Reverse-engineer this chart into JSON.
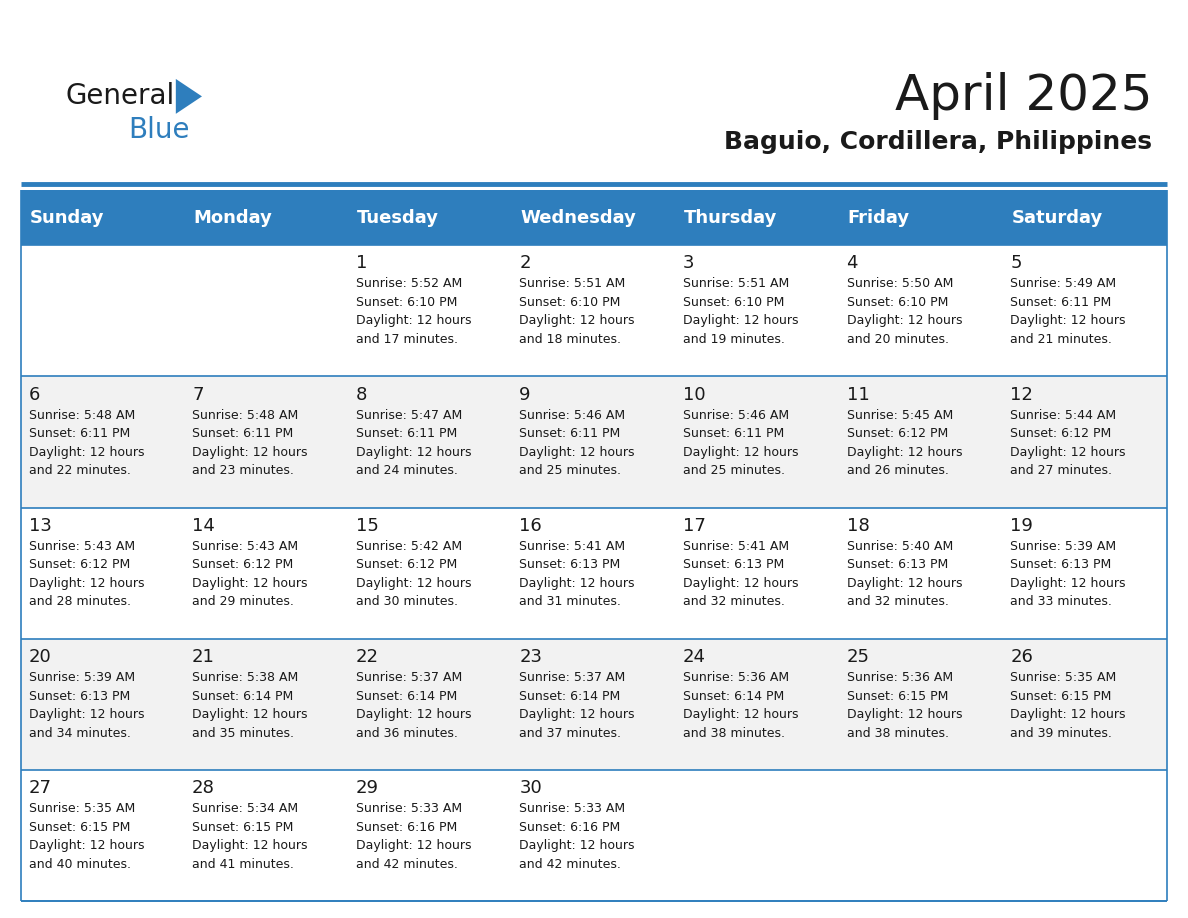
{
  "title": "April 2025",
  "subtitle": "Baguio, Cordillera, Philippines",
  "header_bg": "#2E7EBD",
  "header_text_color": "#FFFFFF",
  "row_bg_odd": "#FFFFFF",
  "row_bg_even": "#F2F2F2",
  "border_color": "#2E7EBD",
  "cell_border_color": "#2E7EBD",
  "days_of_week": [
    "Sunday",
    "Monday",
    "Tuesday",
    "Wednesday",
    "Thursday",
    "Friday",
    "Saturday"
  ],
  "weeks": [
    [
      {
        "day": "",
        "info": ""
      },
      {
        "day": "",
        "info": ""
      },
      {
        "day": "1",
        "info": "Sunrise: 5:52 AM\nSunset: 6:10 PM\nDaylight: 12 hours\nand 17 minutes."
      },
      {
        "day": "2",
        "info": "Sunrise: 5:51 AM\nSunset: 6:10 PM\nDaylight: 12 hours\nand 18 minutes."
      },
      {
        "day": "3",
        "info": "Sunrise: 5:51 AM\nSunset: 6:10 PM\nDaylight: 12 hours\nand 19 minutes."
      },
      {
        "day": "4",
        "info": "Sunrise: 5:50 AM\nSunset: 6:10 PM\nDaylight: 12 hours\nand 20 minutes."
      },
      {
        "day": "5",
        "info": "Sunrise: 5:49 AM\nSunset: 6:11 PM\nDaylight: 12 hours\nand 21 minutes."
      }
    ],
    [
      {
        "day": "6",
        "info": "Sunrise: 5:48 AM\nSunset: 6:11 PM\nDaylight: 12 hours\nand 22 minutes."
      },
      {
        "day": "7",
        "info": "Sunrise: 5:48 AM\nSunset: 6:11 PM\nDaylight: 12 hours\nand 23 minutes."
      },
      {
        "day": "8",
        "info": "Sunrise: 5:47 AM\nSunset: 6:11 PM\nDaylight: 12 hours\nand 24 minutes."
      },
      {
        "day": "9",
        "info": "Sunrise: 5:46 AM\nSunset: 6:11 PM\nDaylight: 12 hours\nand 25 minutes."
      },
      {
        "day": "10",
        "info": "Sunrise: 5:46 AM\nSunset: 6:11 PM\nDaylight: 12 hours\nand 25 minutes."
      },
      {
        "day": "11",
        "info": "Sunrise: 5:45 AM\nSunset: 6:12 PM\nDaylight: 12 hours\nand 26 minutes."
      },
      {
        "day": "12",
        "info": "Sunrise: 5:44 AM\nSunset: 6:12 PM\nDaylight: 12 hours\nand 27 minutes."
      }
    ],
    [
      {
        "day": "13",
        "info": "Sunrise: 5:43 AM\nSunset: 6:12 PM\nDaylight: 12 hours\nand 28 minutes."
      },
      {
        "day": "14",
        "info": "Sunrise: 5:43 AM\nSunset: 6:12 PM\nDaylight: 12 hours\nand 29 minutes."
      },
      {
        "day": "15",
        "info": "Sunrise: 5:42 AM\nSunset: 6:12 PM\nDaylight: 12 hours\nand 30 minutes."
      },
      {
        "day": "16",
        "info": "Sunrise: 5:41 AM\nSunset: 6:13 PM\nDaylight: 12 hours\nand 31 minutes."
      },
      {
        "day": "17",
        "info": "Sunrise: 5:41 AM\nSunset: 6:13 PM\nDaylight: 12 hours\nand 32 minutes."
      },
      {
        "day": "18",
        "info": "Sunrise: 5:40 AM\nSunset: 6:13 PM\nDaylight: 12 hours\nand 32 minutes."
      },
      {
        "day": "19",
        "info": "Sunrise: 5:39 AM\nSunset: 6:13 PM\nDaylight: 12 hours\nand 33 minutes."
      }
    ],
    [
      {
        "day": "20",
        "info": "Sunrise: 5:39 AM\nSunset: 6:13 PM\nDaylight: 12 hours\nand 34 minutes."
      },
      {
        "day": "21",
        "info": "Sunrise: 5:38 AM\nSunset: 6:14 PM\nDaylight: 12 hours\nand 35 minutes."
      },
      {
        "day": "22",
        "info": "Sunrise: 5:37 AM\nSunset: 6:14 PM\nDaylight: 12 hours\nand 36 minutes."
      },
      {
        "day": "23",
        "info": "Sunrise: 5:37 AM\nSunset: 6:14 PM\nDaylight: 12 hours\nand 37 minutes."
      },
      {
        "day": "24",
        "info": "Sunrise: 5:36 AM\nSunset: 6:14 PM\nDaylight: 12 hours\nand 38 minutes."
      },
      {
        "day": "25",
        "info": "Sunrise: 5:36 AM\nSunset: 6:15 PM\nDaylight: 12 hours\nand 38 minutes."
      },
      {
        "day": "26",
        "info": "Sunrise: 5:35 AM\nSunset: 6:15 PM\nDaylight: 12 hours\nand 39 minutes."
      }
    ],
    [
      {
        "day": "27",
        "info": "Sunrise: 5:35 AM\nSunset: 6:15 PM\nDaylight: 12 hours\nand 40 minutes."
      },
      {
        "day": "28",
        "info": "Sunrise: 5:34 AM\nSunset: 6:15 PM\nDaylight: 12 hours\nand 41 minutes."
      },
      {
        "day": "29",
        "info": "Sunrise: 5:33 AM\nSunset: 6:16 PM\nDaylight: 12 hours\nand 42 minutes."
      },
      {
        "day": "30",
        "info": "Sunrise: 5:33 AM\nSunset: 6:16 PM\nDaylight: 12 hours\nand 42 minutes."
      },
      {
        "day": "",
        "info": ""
      },
      {
        "day": "",
        "info": ""
      },
      {
        "day": "",
        "info": ""
      }
    ]
  ],
  "logo_text_general": "General",
  "logo_text_blue": "Blue",
  "logo_color_general": "#1a1a1a",
  "logo_color_blue": "#2E7EBD",
  "logo_triangle_color": "#2E7EBD",
  "title_fontsize": 36,
  "subtitle_fontsize": 18,
  "header_fontsize": 13,
  "day_number_fontsize": 13,
  "info_fontsize": 9
}
